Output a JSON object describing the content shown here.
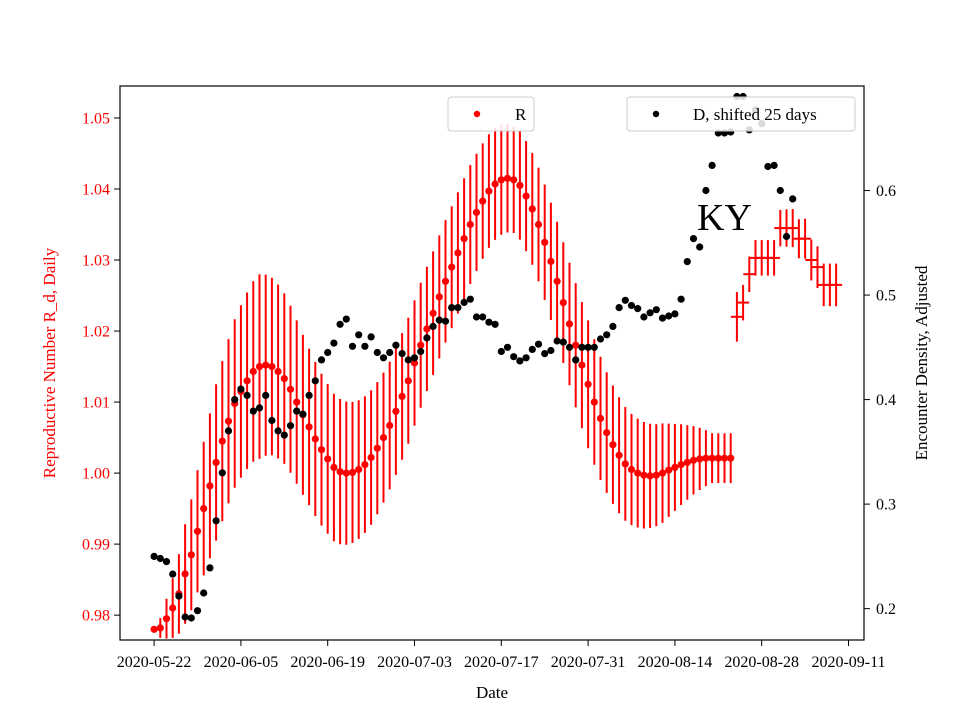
{
  "chart_data": {
    "type": "scatter",
    "annotation": "KY",
    "xlabel": "Date",
    "ylabel_left": "Reproductive Number R_d, Daily",
    "ylabel_right": "Encounter Density, Adjusted",
    "x_start": "2020-05-22",
    "x_tick_labels": [
      "2020-05-22",
      "2020-06-05",
      "2020-06-19",
      "2020-07-03",
      "2020-07-17",
      "2020-07-31",
      "2020-08-14",
      "2020-08-28",
      "2020-09-11"
    ],
    "xlim_days": [
      -5.5,
      114.5
    ],
    "ylim_left": [
      0.9765,
      1.0545
    ],
    "yticks_left": [
      "0.98",
      "0.99",
      "1.00",
      "1.01",
      "1.02",
      "1.03",
      "1.04",
      "1.05"
    ],
    "ylim_right": [
      0.17,
      0.7
    ],
    "yticks_right": [
      "0.2",
      "0.3",
      "0.4",
      "0.5",
      "0.6"
    ],
    "legend": {
      "r_label": "R",
      "d_label": "D, shifted 25 days",
      "r_position": "top-center",
      "d_position": "top-right"
    },
    "colors": {
      "r_series": "#ff0000",
      "d_series": "#000000",
      "axis": "#000000"
    },
    "series": [
      {
        "name": "R",
        "axis": "left",
        "style": "markers-with-error-bars",
        "error_knots": [
          [
            0,
            0.0
          ],
          [
            5,
            0.007
          ],
          [
            10,
            0.011
          ],
          [
            17,
            0.013
          ],
          [
            25,
            0.011
          ],
          [
            38,
            0.009
          ],
          [
            50,
            0.0085
          ],
          [
            58,
            0.0075
          ],
          [
            70,
            0.009
          ],
          [
            82,
            0.007
          ],
          [
            90,
            0.0035
          ],
          [
            94,
            0.0035
          ],
          [
            95,
            0.0025
          ],
          [
            100,
            0.0025
          ],
          [
            108,
            0.003
          ]
        ],
        "points": [
          {
            "day": 0,
            "value": 0.978
          },
          {
            "day": 1,
            "value": 0.9782
          },
          {
            "day": 2,
            "value": 0.9795
          },
          {
            "day": 3,
            "value": 0.981
          },
          {
            "day": 4,
            "value": 0.983
          },
          {
            "day": 5,
            "value": 0.9858
          },
          {
            "day": 6,
            "value": 0.9885
          },
          {
            "day": 7,
            "value": 0.9918
          },
          {
            "day": 8,
            "value": 0.995
          },
          {
            "day": 9,
            "value": 0.9982
          },
          {
            "day": 10,
            "value": 1.0015
          },
          {
            "day": 11,
            "value": 1.0045
          },
          {
            "day": 12,
            "value": 1.0073
          },
          {
            "day": 13,
            "value": 1.0098
          },
          {
            "day": 14,
            "value": 1.0115
          },
          {
            "day": 15,
            "value": 1.013
          },
          {
            "day": 16,
            "value": 1.0143
          },
          {
            "day": 17,
            "value": 1.015
          },
          {
            "day": 18,
            "value": 1.0152
          },
          {
            "day": 19,
            "value": 1.015
          },
          {
            "day": 20,
            "value": 1.0143
          },
          {
            "day": 21,
            "value": 1.0133
          },
          {
            "day": 22,
            "value": 1.0118
          },
          {
            "day": 23,
            "value": 1.01
          },
          {
            "day": 24,
            "value": 1.0082
          },
          {
            "day": 25,
            "value": 1.0065
          },
          {
            "day": 26,
            "value": 1.0048
          },
          {
            "day": 27,
            "value": 1.0033
          },
          {
            "day": 28,
            "value": 1.002
          },
          {
            "day": 29,
            "value": 1.0008
          },
          {
            "day": 30,
            "value": 1.0002
          },
          {
            "day": 31,
            "value": 1.0
          },
          {
            "day": 32,
            "value": 1.0001
          },
          {
            "day": 33,
            "value": 1.0005
          },
          {
            "day": 34,
            "value": 1.0012
          },
          {
            "day": 35,
            "value": 1.0022
          },
          {
            "day": 36,
            "value": 1.0035
          },
          {
            "day": 37,
            "value": 1.005
          },
          {
            "day": 38,
            "value": 1.0067
          },
          {
            "day": 39,
            "value": 1.0087
          },
          {
            "day": 40,
            "value": 1.0108
          },
          {
            "day": 41,
            "value": 1.013
          },
          {
            "day": 42,
            "value": 1.0155
          },
          {
            "day": 43,
            "value": 1.018
          },
          {
            "day": 44,
            "value": 1.0203
          },
          {
            "day": 45,
            "value": 1.0225
          },
          {
            "day": 46,
            "value": 1.0248
          },
          {
            "day": 47,
            "value": 1.027
          },
          {
            "day": 48,
            "value": 1.029
          },
          {
            "day": 49,
            "value": 1.031
          },
          {
            "day": 50,
            "value": 1.033
          },
          {
            "day": 51,
            "value": 1.035
          },
          {
            "day": 52,
            "value": 1.0367
          },
          {
            "day": 53,
            "value": 1.0383
          },
          {
            "day": 54,
            "value": 1.0397
          },
          {
            "day": 55,
            "value": 1.0407
          },
          {
            "day": 56,
            "value": 1.0413
          },
          {
            "day": 57,
            "value": 1.0415
          },
          {
            "day": 58,
            "value": 1.0413
          },
          {
            "day": 59,
            "value": 1.0405
          },
          {
            "day": 60,
            "value": 1.039
          },
          {
            "day": 61,
            "value": 1.0372
          },
          {
            "day": 62,
            "value": 1.035
          },
          {
            "day": 63,
            "value": 1.0325
          },
          {
            "day": 64,
            "value": 1.0298
          },
          {
            "day": 65,
            "value": 1.027
          },
          {
            "day": 66,
            "value": 1.024
          },
          {
            "day": 67,
            "value": 1.021
          },
          {
            "day": 68,
            "value": 1.018
          },
          {
            "day": 69,
            "value": 1.0152
          },
          {
            "day": 70,
            "value": 1.0125
          },
          {
            "day": 71,
            "value": 1.01
          },
          {
            "day": 72,
            "value": 1.0077
          },
          {
            "day": 73,
            "value": 1.0057
          },
          {
            "day": 74,
            "value": 1.004
          },
          {
            "day": 75,
            "value": 1.0025
          },
          {
            "day": 76,
            "value": 1.0013
          },
          {
            "day": 77,
            "value": 1.0005
          },
          {
            "day": 78,
            "value": 1.0
          },
          {
            "day": 79,
            "value": 0.9997
          },
          {
            "day": 80,
            "value": 0.9996
          },
          {
            "day": 81,
            "value": 0.9997
          },
          {
            "day": 82,
            "value": 1.0
          },
          {
            "day": 83,
            "value": 1.0004
          },
          {
            "day": 84,
            "value": 1.0008
          },
          {
            "day": 85,
            "value": 1.0012
          },
          {
            "day": 86,
            "value": 1.0015
          },
          {
            "day": 87,
            "value": 1.0018
          },
          {
            "day": 88,
            "value": 1.002
          },
          {
            "day": 89,
            "value": 1.0021
          },
          {
            "day": 90,
            "value": 1.0021
          },
          {
            "day": 91,
            "value": 1.0021
          },
          {
            "day": 92,
            "value": 1.0021
          },
          {
            "day": 93,
            "value": 1.0021
          },
          {
            "day": 94,
            "value": 1.022
          },
          {
            "day": 95,
            "value": 1.024
          },
          {
            "day": 96,
            "value": 1.028
          },
          {
            "day": 97,
            "value": 1.0303
          },
          {
            "day": 98,
            "value": 1.0303
          },
          {
            "day": 99,
            "value": 1.0303
          },
          {
            "day": 100,
            "value": 1.0303
          },
          {
            "day": 101,
            "value": 1.0345
          },
          {
            "day": 102,
            "value": 1.0345
          },
          {
            "day": 103,
            "value": 1.0345
          },
          {
            "day": 104,
            "value": 1.033
          },
          {
            "day": 105,
            "value": 1.033
          },
          {
            "day": 106,
            "value": 1.03
          },
          {
            "day": 107,
            "value": 1.029
          },
          {
            "day": 108,
            "value": 1.0265
          },
          {
            "day": 109,
            "value": 1.0265
          },
          {
            "day": 110,
            "value": 1.0265
          }
        ]
      },
      {
        "name": "D, shifted 25 days",
        "axis": "right",
        "style": "markers",
        "points": [
          {
            "day": 0,
            "value": 0.25
          },
          {
            "day": 1,
            "value": 0.248
          },
          {
            "day": 2,
            "value": 0.245
          },
          {
            "day": 3,
            "value": 0.233
          },
          {
            "day": 4,
            "value": 0.212
          },
          {
            "day": 5,
            "value": 0.192
          },
          {
            "day": 6,
            "value": 0.191
          },
          {
            "day": 7,
            "value": 0.198
          },
          {
            "day": 8,
            "value": 0.215
          },
          {
            "day": 9,
            "value": 0.239
          },
          {
            "day": 10,
            "value": 0.284
          },
          {
            "day": 11,
            "value": 0.33
          },
          {
            "day": 12,
            "value": 0.37
          },
          {
            "day": 13,
            "value": 0.4
          },
          {
            "day": 14,
            "value": 0.41
          },
          {
            "day": 15,
            "value": 0.404
          },
          {
            "day": 16,
            "value": 0.389
          },
          {
            "day": 17,
            "value": 0.392
          },
          {
            "day": 18,
            "value": 0.404
          },
          {
            "day": 19,
            "value": 0.38
          },
          {
            "day": 20,
            "value": 0.37
          },
          {
            "day": 21,
            "value": 0.366
          },
          {
            "day": 22,
            "value": 0.375
          },
          {
            "day": 23,
            "value": 0.389
          },
          {
            "day": 24,
            "value": 0.386
          },
          {
            "day": 25,
            "value": 0.404
          },
          {
            "day": 26,
            "value": 0.418
          },
          {
            "day": 27,
            "value": 0.438
          },
          {
            "day": 28,
            "value": 0.445
          },
          {
            "day": 29,
            "value": 0.454
          },
          {
            "day": 30,
            "value": 0.472
          },
          {
            "day": 31,
            "value": 0.477
          },
          {
            "day": 32,
            "value": 0.451
          },
          {
            "day": 33,
            "value": 0.462
          },
          {
            "day": 34,
            "value": 0.451
          },
          {
            "day": 35,
            "value": 0.46
          },
          {
            "day": 36,
            "value": 0.445
          },
          {
            "day": 37,
            "value": 0.44
          },
          {
            "day": 38,
            "value": 0.445
          },
          {
            "day": 39,
            "value": 0.452
          },
          {
            "day": 40,
            "value": 0.444
          },
          {
            "day": 41,
            "value": 0.438
          },
          {
            "day": 42,
            "value": 0.44
          },
          {
            "day": 43,
            "value": 0.446
          },
          {
            "day": 44,
            "value": 0.459
          },
          {
            "day": 45,
            "value": 0.47
          },
          {
            "day": 46,
            "value": 0.476
          },
          {
            "day": 47,
            "value": 0.475
          },
          {
            "day": 48,
            "value": 0.488
          },
          {
            "day": 49,
            "value": 0.488
          },
          {
            "day": 50,
            "value": 0.493
          },
          {
            "day": 51,
            "value": 0.496
          },
          {
            "day": 52,
            "value": 0.479
          },
          {
            "day": 53,
            "value": 0.479
          },
          {
            "day": 54,
            "value": 0.474
          },
          {
            "day": 55,
            "value": 0.472
          },
          {
            "day": 56,
            "value": 0.446
          },
          {
            "day": 57,
            "value": 0.45
          },
          {
            "day": 58,
            "value": 0.441
          },
          {
            "day": 59,
            "value": 0.437
          },
          {
            "day": 60,
            "value": 0.44
          },
          {
            "day": 61,
            "value": 0.448
          },
          {
            "day": 62,
            "value": 0.453
          },
          {
            "day": 63,
            "value": 0.444
          },
          {
            "day": 64,
            "value": 0.447
          },
          {
            "day": 65,
            "value": 0.456
          },
          {
            "day": 66,
            "value": 0.455
          },
          {
            "day": 67,
            "value": 0.45
          },
          {
            "day": 68,
            "value": 0.438
          },
          {
            "day": 69,
            "value": 0.45
          },
          {
            "day": 70,
            "value": 0.45
          },
          {
            "day": 71,
            "value": 0.45
          },
          {
            "day": 72,
            "value": 0.458
          },
          {
            "day": 73,
            "value": 0.462
          },
          {
            "day": 74,
            "value": 0.47
          },
          {
            "day": 75,
            "value": 0.488
          },
          {
            "day": 76,
            "value": 0.495
          },
          {
            "day": 77,
            "value": 0.49
          },
          {
            "day": 78,
            "value": 0.487
          },
          {
            "day": 79,
            "value": 0.479
          },
          {
            "day": 80,
            "value": 0.483
          },
          {
            "day": 81,
            "value": 0.486
          },
          {
            "day": 82,
            "value": 0.478
          },
          {
            "day": 83,
            "value": 0.48
          },
          {
            "day": 84,
            "value": 0.482
          },
          {
            "day": 85,
            "value": 0.496
          },
          {
            "day": 86,
            "value": 0.532
          },
          {
            "day": 87,
            "value": 0.554
          },
          {
            "day": 88,
            "value": 0.546
          },
          {
            "day": 89,
            "value": 0.6
          },
          {
            "day": 90,
            "value": 0.624
          },
          {
            "day": 91,
            "value": 0.655
          },
          {
            "day": 92,
            "value": 0.655
          },
          {
            "day": 93,
            "value": 0.656
          },
          {
            "day": 94,
            "value": 0.69
          },
          {
            "day": 95,
            "value": 0.69
          },
          {
            "day": 96,
            "value": 0.658
          },
          {
            "day": 97,
            "value": 0.677
          },
          {
            "day": 98,
            "value": 0.664
          },
          {
            "day": 99,
            "value": 0.623
          },
          {
            "day": 100,
            "value": 0.624
          },
          {
            "day": 101,
            "value": 0.6
          },
          {
            "day": 102,
            "value": 0.556
          },
          {
            "day": 103,
            "value": 0.592
          }
        ]
      }
    ]
  }
}
